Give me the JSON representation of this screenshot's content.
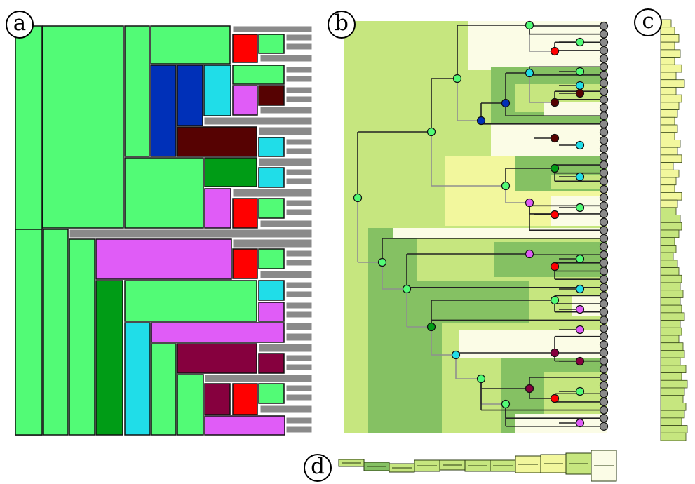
{
  "figure": {
    "panel_labels": [
      "a",
      "b",
      "c",
      "d"
    ]
  },
  "colors": {
    "light_green": "#52fb76",
    "dark_green": "#009c16",
    "blue": "#0030b8",
    "cyan": "#20dde8",
    "magenta": "#e05cf7",
    "red": "#ff0000",
    "dark_red": "#560202",
    "maroon": "#86003e",
    "leaf_gray": "#8a8a8a",
    "bg_green_1": "#c6e67f",
    "bg_green_2": "#85c163",
    "bg_yellow": "#f2f79d",
    "bg_pale": "#fbfce6"
  }
}
